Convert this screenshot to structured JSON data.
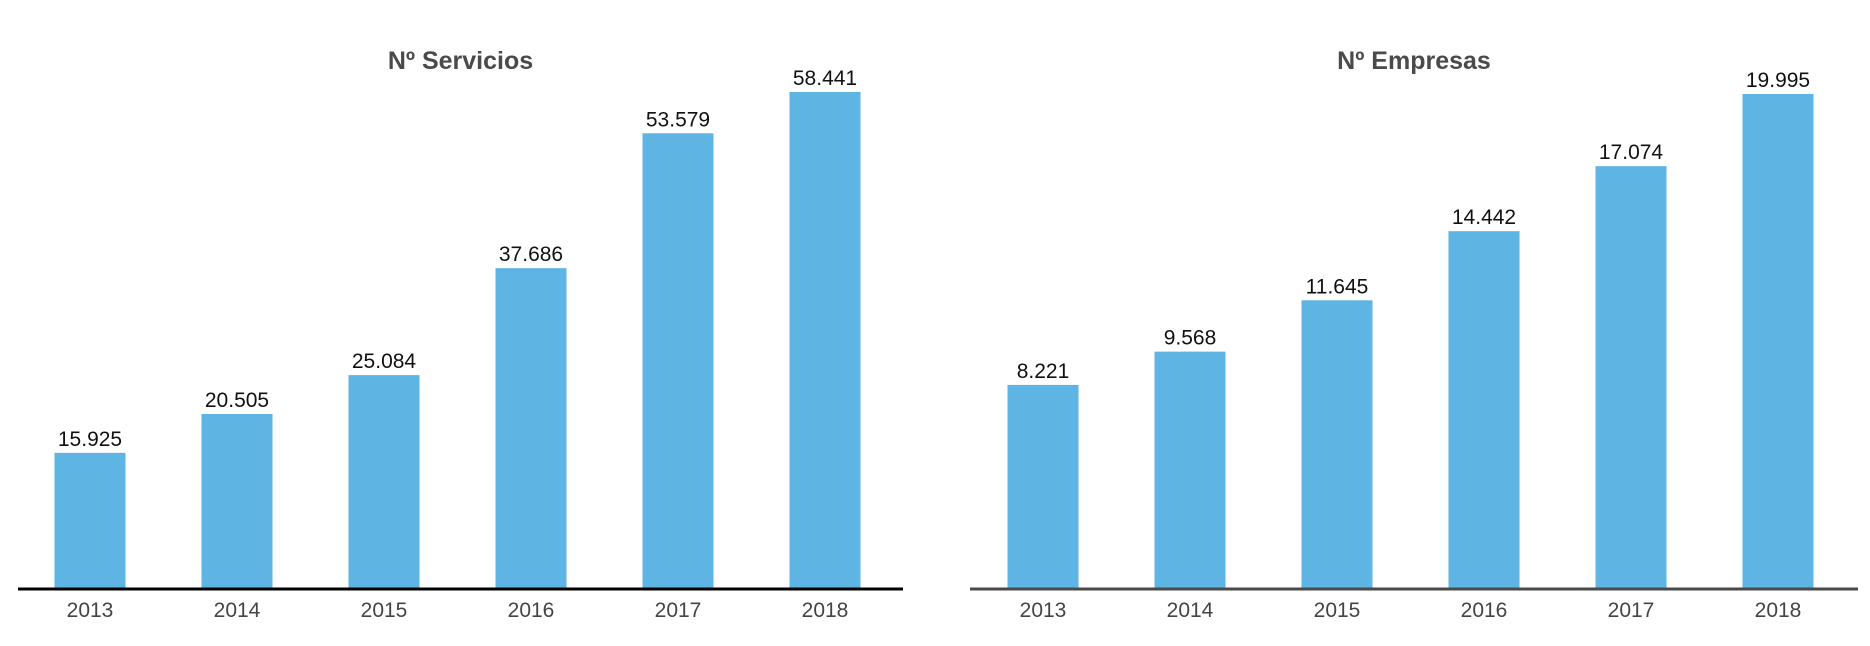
{
  "chart_data": [
    {
      "type": "bar",
      "title": "Nº Servicios",
      "categories": [
        "2013",
        "2014",
        "2015",
        "2016",
        "2017",
        "2018"
      ],
      "values": [
        15925,
        20505,
        25084,
        37686,
        53579,
        58441
      ],
      "value_labels": [
        "15.925",
        "20.505",
        "25.084",
        "37.686",
        "53.579",
        "58.441"
      ],
      "xlabel": "",
      "ylabel": "",
      "ylim": [
        0,
        58441
      ],
      "grid": false,
      "bar_color": "#5EB5E3",
      "axis_color": "#000000"
    },
    {
      "type": "bar",
      "title": "Nº Empresas",
      "categories": [
        "2013",
        "2014",
        "2015",
        "2016",
        "2017",
        "2018"
      ],
      "values": [
        8221,
        9568,
        11645,
        14442,
        17074,
        19995
      ],
      "value_labels": [
        "8.221",
        "9.568",
        "11.645",
        "14.442",
        "17.074",
        "19.995"
      ],
      "xlabel": "",
      "ylabel": "",
      "ylim": [
        0,
        19995
      ],
      "grid": false,
      "bar_color": "#5EB5E3",
      "axis_color": "#4A4A4A"
    }
  ]
}
